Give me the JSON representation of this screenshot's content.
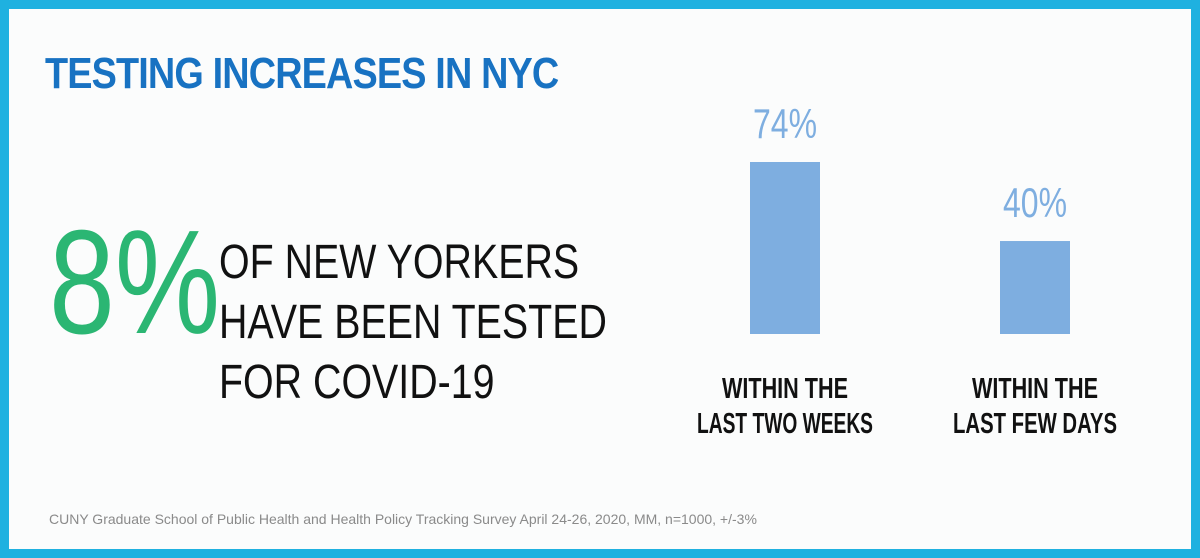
{
  "title": "TESTING INCREASES IN NYC",
  "stat": {
    "value": "8%",
    "lines": [
      "OF NEW YORKERS",
      "HAVE BEEN TESTED",
      "FOR COVID-19"
    ]
  },
  "colors": {
    "border": "#1fb1e0",
    "title": "#1872c2",
    "stat": "#2bb673",
    "bar": "#7eaee0",
    "bar_label": "#7eaee0"
  },
  "chart_data": {
    "type": "bar",
    "categories": [
      [
        "WITHIN THE",
        "LAST TWO WEEKS"
      ],
      [
        "WITHIN THE",
        "LAST FEW DAYS"
      ]
    ],
    "values": [
      74,
      40
    ],
    "value_labels": [
      "74%",
      "40%"
    ],
    "ylim": [
      0,
      74
    ],
    "grid": false
  },
  "source": "CUNY Graduate School of Public Health and Health Policy Tracking Survey April 24-26, 2020, MM, n=1000, +/-3%"
}
